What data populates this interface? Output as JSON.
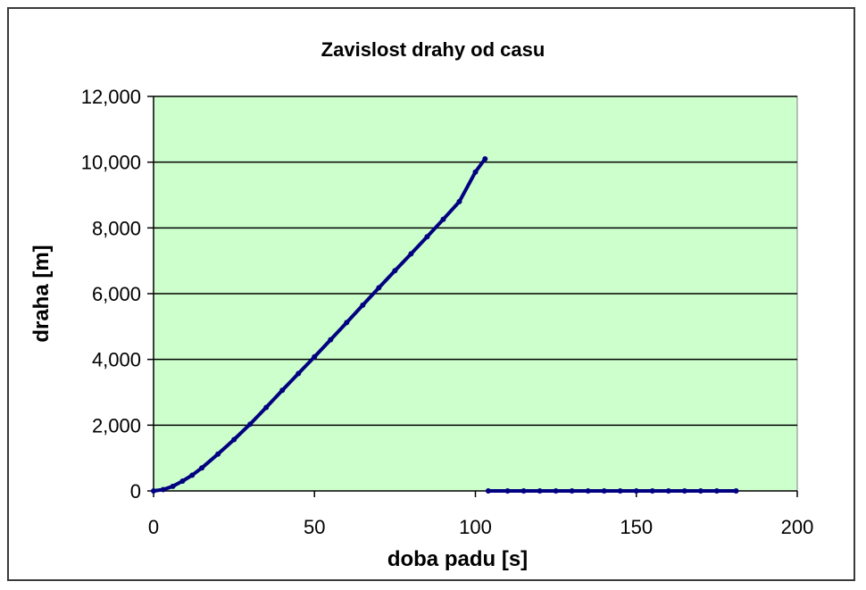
{
  "chart_data": {
    "type": "scatter",
    "title": "Zavislost drahy od casu",
    "xlabel": "doba padu [s]",
    "ylabel": "draha [m]",
    "xlim": [
      0,
      200
    ],
    "ylim": [
      0,
      12000
    ],
    "x_ticks": [
      "0",
      "50",
      "100",
      "150",
      "200"
    ],
    "y_ticks": [
      "0",
      "2,000",
      "4,000",
      "6,000",
      "8,000",
      "10,000",
      "12,000"
    ],
    "grid": "horizontal",
    "legend": "none",
    "plot_background": "#ccffcc",
    "series": [
      {
        "color": "#000080",
        "x": [
          0,
          3,
          6,
          9,
          12,
          15,
          20,
          25,
          30,
          35,
          40,
          45,
          50,
          55,
          60,
          65,
          70,
          75,
          80,
          85,
          90,
          95,
          100,
          103,
          104,
          110,
          115,
          120,
          125,
          130,
          135,
          140,
          145,
          150,
          155,
          160,
          165,
          170,
          175,
          181
        ],
        "y": [
          0,
          40,
          140,
          300,
          480,
          700,
          1120,
          1560,
          2030,
          2540,
          3060,
          3570,
          4080,
          4600,
          5120,
          5650,
          6180,
          6700,
          7210,
          7730,
          8260,
          8800,
          9700,
          10100,
          0,
          0,
          0,
          0,
          0,
          0,
          0,
          0,
          0,
          0,
          0,
          0,
          0,
          0,
          0,
          0
        ]
      }
    ]
  }
}
